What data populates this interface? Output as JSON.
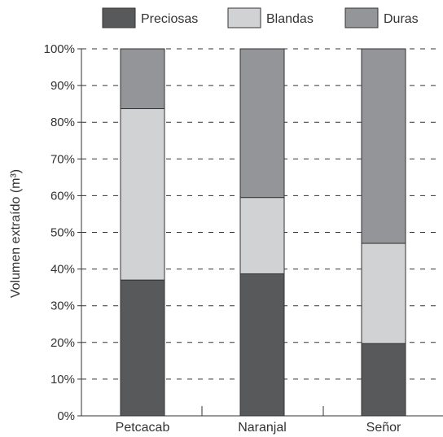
{
  "chart_data": {
    "type": "bar",
    "stacked": true,
    "percent_stacked": true,
    "categories": [
      "Petcacab",
      "Naranjal",
      "Señor"
    ],
    "series": [
      {
        "name": "Preciosas",
        "color": "#58595b",
        "values": [
          37,
          38.7,
          19.7
        ]
      },
      {
        "name": "Blandas",
        "color": "#d1d2d4",
        "values": [
          46.7,
          20.8,
          27.3
        ]
      },
      {
        "name": "Duras",
        "color": "#939598",
        "values": [
          16.3,
          40.5,
          53
        ]
      }
    ],
    "ylabel": "Volumen extraído (m³)",
    "ylim": [
      0,
      100
    ],
    "yticks": [
      "0%",
      "10%",
      "20%",
      "30%",
      "40%",
      "50%",
      "60%",
      "70%",
      "80%",
      "90%",
      "100%"
    ],
    "grid": true,
    "legend_position": "top"
  }
}
